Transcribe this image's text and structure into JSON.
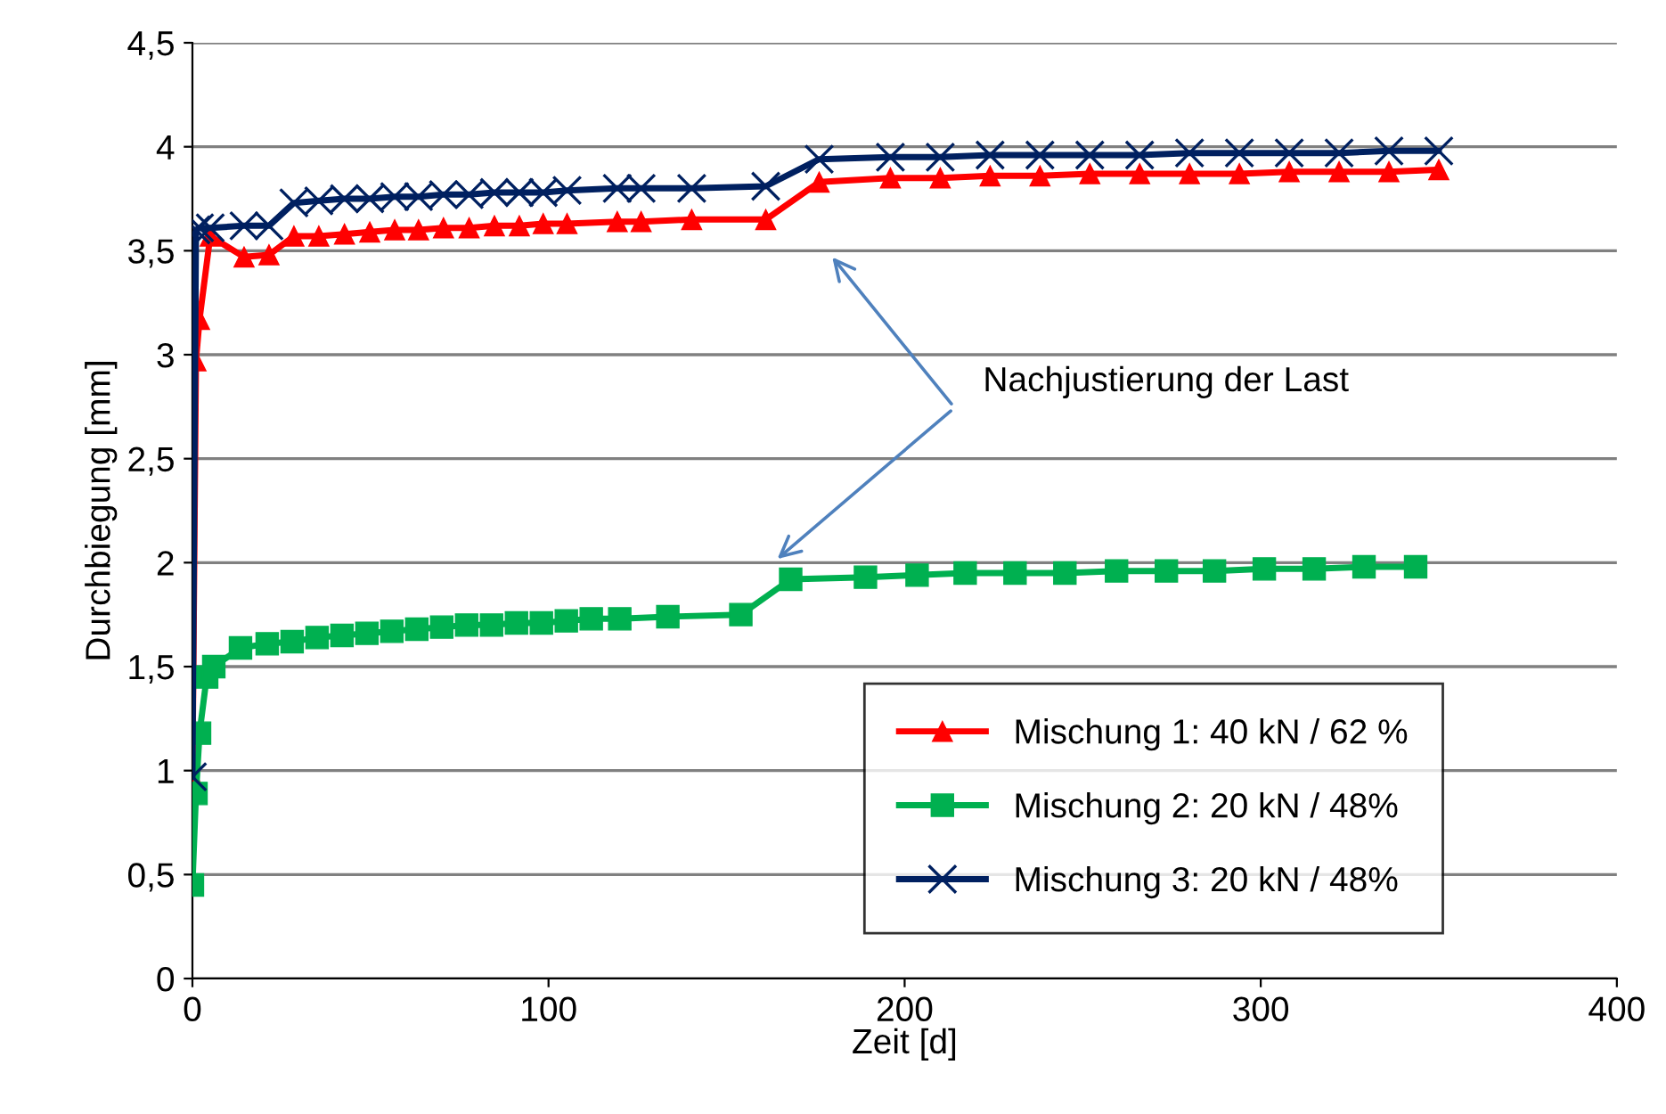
{
  "chart_data": {
    "type": "line",
    "xlabel": "Zeit [d]",
    "ylabel": "Durchbiegung [mm]",
    "xlim": [
      0,
      400
    ],
    "xticks": [
      0,
      100,
      200,
      300,
      400
    ],
    "ylim": [
      0,
      4.5
    ],
    "yticks": [
      0,
      {
        "value": 0.5,
        "label": "0,5"
      },
      1,
      {
        "value": 1.5,
        "label": "1,5"
      },
      2,
      {
        "value": 2.5,
        "label": "2,5"
      },
      3,
      {
        "value": 3.5,
        "label": "3,5"
      },
      4,
      {
        "value": 4.5,
        "label": "4,5"
      }
    ],
    "grid": "y",
    "legend": "bottom right",
    "line_style": "solid",
    "series": [
      {
        "name": "Mischung 1: 40 kN / 62 %",
        "color": "#ff0000",
        "marker": "triangle",
        "x": [
          0,
          1,
          2,
          5,
          14.5,
          21.5,
          28.5,
          35.5,
          42.7,
          49.8,
          56.8,
          63.5,
          70.5,
          77.7,
          84.8,
          91.8,
          98.5,
          105.2,
          119.3,
          126,
          140.2,
          161,
          176,
          196,
          210,
          224,
          238,
          252,
          266,
          280,
          294,
          308,
          322,
          336,
          350
        ],
        "values": [
          0.97,
          2.97,
          3.17,
          3.57,
          3.47,
          3.48,
          3.57,
          3.57,
          3.58,
          3.59,
          3.6,
          3.6,
          3.61,
          3.61,
          3.62,
          3.62,
          3.63,
          3.63,
          3.64,
          3.64,
          3.65,
          3.65,
          3.83,
          3.85,
          3.85,
          3.86,
          3.86,
          3.87,
          3.87,
          3.87,
          3.87,
          3.88,
          3.88,
          3.88,
          3.89
        ]
      },
      {
        "name": "Mischung 2: 20 kN / 48%",
        "color": "#00b050",
        "marker": "square",
        "x": [
          0,
          1,
          2,
          4,
          6,
          13.5,
          21,
          28,
          35,
          42,
          49,
          56,
          63,
          70,
          77,
          84,
          91,
          98,
          105,
          112,
          120,
          133.5,
          154,
          168,
          189,
          203.5,
          217,
          231,
          245,
          259.5,
          273.5,
          287,
          301,
          315,
          329,
          343.5
        ],
        "values": [
          0.45,
          0.89,
          1.18,
          1.45,
          1.5,
          1.59,
          1.61,
          1.62,
          1.64,
          1.65,
          1.66,
          1.67,
          1.68,
          1.69,
          1.7,
          1.7,
          1.71,
          1.71,
          1.72,
          1.73,
          1.73,
          1.74,
          1.75,
          1.92,
          1.93,
          1.94,
          1.95,
          1.95,
          1.95,
          1.96,
          1.96,
          1.96,
          1.97,
          1.97,
          1.98,
          1.98
        ]
      },
      {
        "name": "Mischung 3: 20 kN / 48%",
        "color": "#002060",
        "marker": "cross",
        "x": [
          0,
          1,
          2,
          5,
          14.5,
          21.5,
          28.5,
          35.5,
          42.7,
          49.8,
          56.8,
          63.5,
          70.5,
          77.7,
          84.8,
          91.8,
          98.5,
          105.2,
          119.3,
          126,
          140.2,
          161,
          176,
          196,
          210,
          224,
          238,
          252,
          266,
          280,
          294,
          308,
          322,
          336,
          350
        ],
        "values": [
          0.97,
          3.6,
          3.61,
          3.61,
          3.62,
          3.62,
          3.73,
          3.74,
          3.75,
          3.75,
          3.76,
          3.76,
          3.77,
          3.77,
          3.78,
          3.78,
          3.78,
          3.79,
          3.8,
          3.8,
          3.8,
          3.81,
          3.94,
          3.95,
          3.95,
          3.96,
          3.96,
          3.96,
          3.96,
          3.97,
          3.97,
          3.97,
          3.97,
          3.98,
          3.98
        ]
      }
    ],
    "annotations": [
      "Nachjustierung der Last"
    ]
  }
}
